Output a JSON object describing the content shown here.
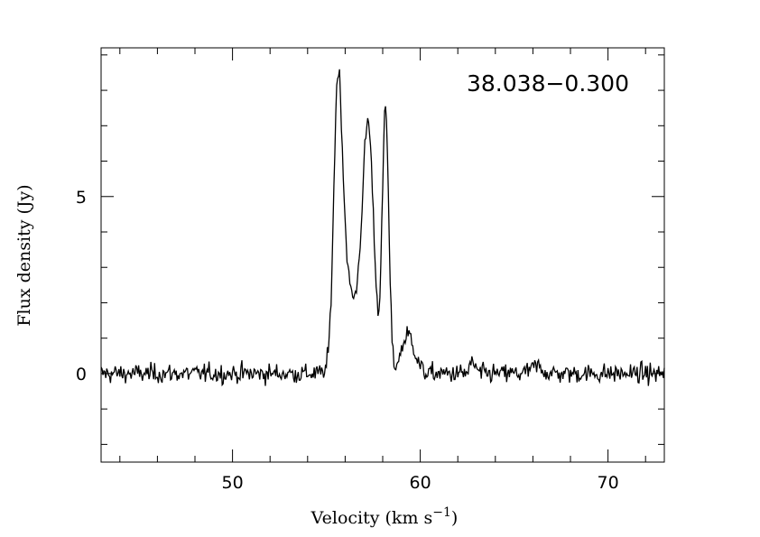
{
  "chart_data": {
    "type": "line",
    "title": "",
    "annotation": "38.038−0.300",
    "xlabel_main": "Velocity (km s",
    "xlabel_sup": "−1",
    "xlabel_close": ")",
    "ylabel": "Flux density (Jy)",
    "xlim": [
      43,
      73
    ],
    "ylim": [
      -2.5,
      9.2
    ],
    "x_ticks_labeled": [
      50,
      60,
      70
    ],
    "y_ticks_labeled": [
      0,
      5
    ],
    "grid": false,
    "series": [
      {
        "peaks": [
          {
            "center": 55.6,
            "height": 7.2,
            "width": 0.22
          },
          {
            "center": 55.95,
            "height": 2.2,
            "width": 0.28
          },
          {
            "center": 56.6,
            "height": 1.2,
            "width": 0.6
          },
          {
            "center": 57.25,
            "height": 5.8,
            "width": 0.28
          },
          {
            "center": 56.9,
            "height": 1.0,
            "width": 0.35
          },
          {
            "center": 58.15,
            "height": 7.4,
            "width": 0.17
          },
          {
            "center": 59.35,
            "height": 1.1,
            "width": 0.35
          },
          {
            "center": 62.8,
            "height": 0.3,
            "width": 0.15
          },
          {
            "center": 66.2,
            "height": 0.2,
            "width": 0.3
          }
        ],
        "noise_rms": 0.17,
        "x_start": 43,
        "x_end": 73,
        "channels": 600
      }
    ]
  }
}
